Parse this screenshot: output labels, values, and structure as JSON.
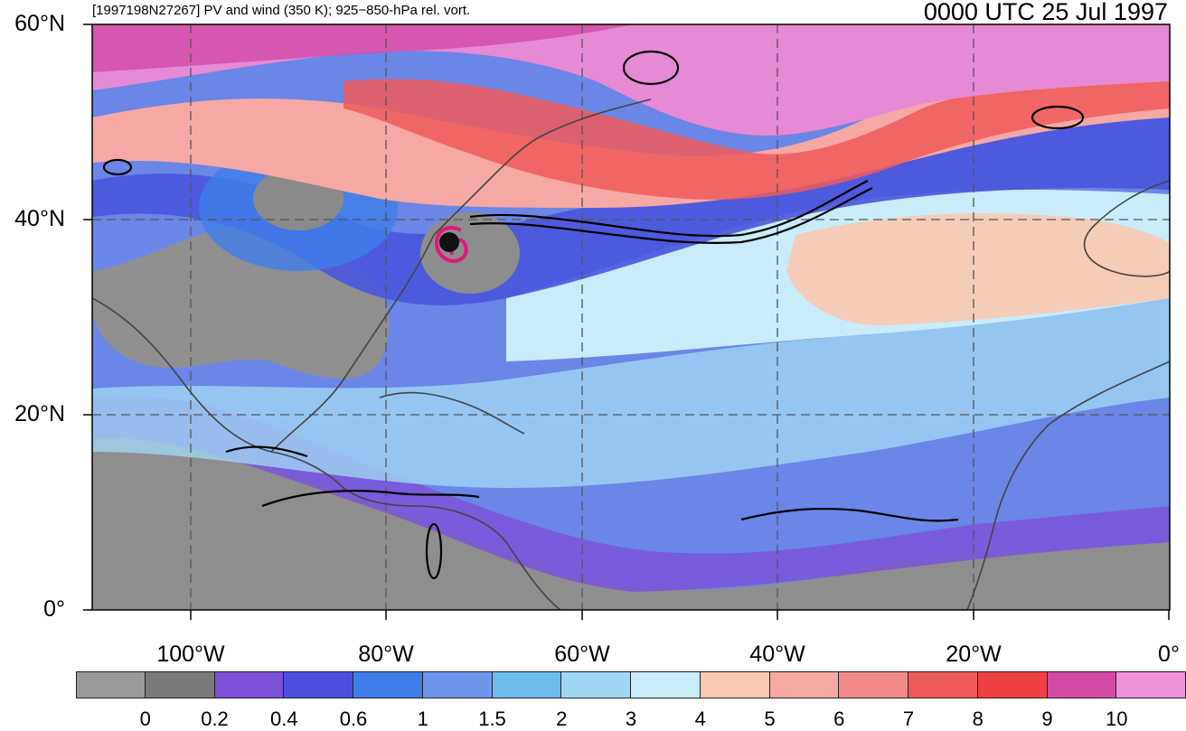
{
  "header": {
    "title": "[1997198N27267] PV and wind (350 K); 925−850-hPa rel. vort.",
    "time": "0000 UTC 25 Jul 1997"
  },
  "axes": {
    "lat_labels": [
      "60°N",
      "40°N",
      "20°N",
      "0°"
    ],
    "lon_labels": [
      "100°W",
      "80°W",
      "60°W",
      "40°W",
      "20°W",
      "0°"
    ]
  },
  "colorbar": {
    "labels": [
      "0",
      "0.2",
      "0.4",
      "0.6",
      "1",
      "1.5",
      "2",
      "3",
      "4",
      "5",
      "6",
      "7",
      "8",
      "9",
      "10"
    ],
    "colors": [
      "#9a9a9a",
      "#7a7a7a",
      "#7b4fd8",
      "#4a4fe0",
      "#3f7ee8",
      "#6d97ec",
      "#6ebcec",
      "#9fd6f4",
      "#c8ecfa",
      "#f8c9b0",
      "#f6a8a4",
      "#f28a8a",
      "#ee5a5a",
      "#ee4040",
      "#d24aa6",
      "#ee92dc"
    ]
  }
}
